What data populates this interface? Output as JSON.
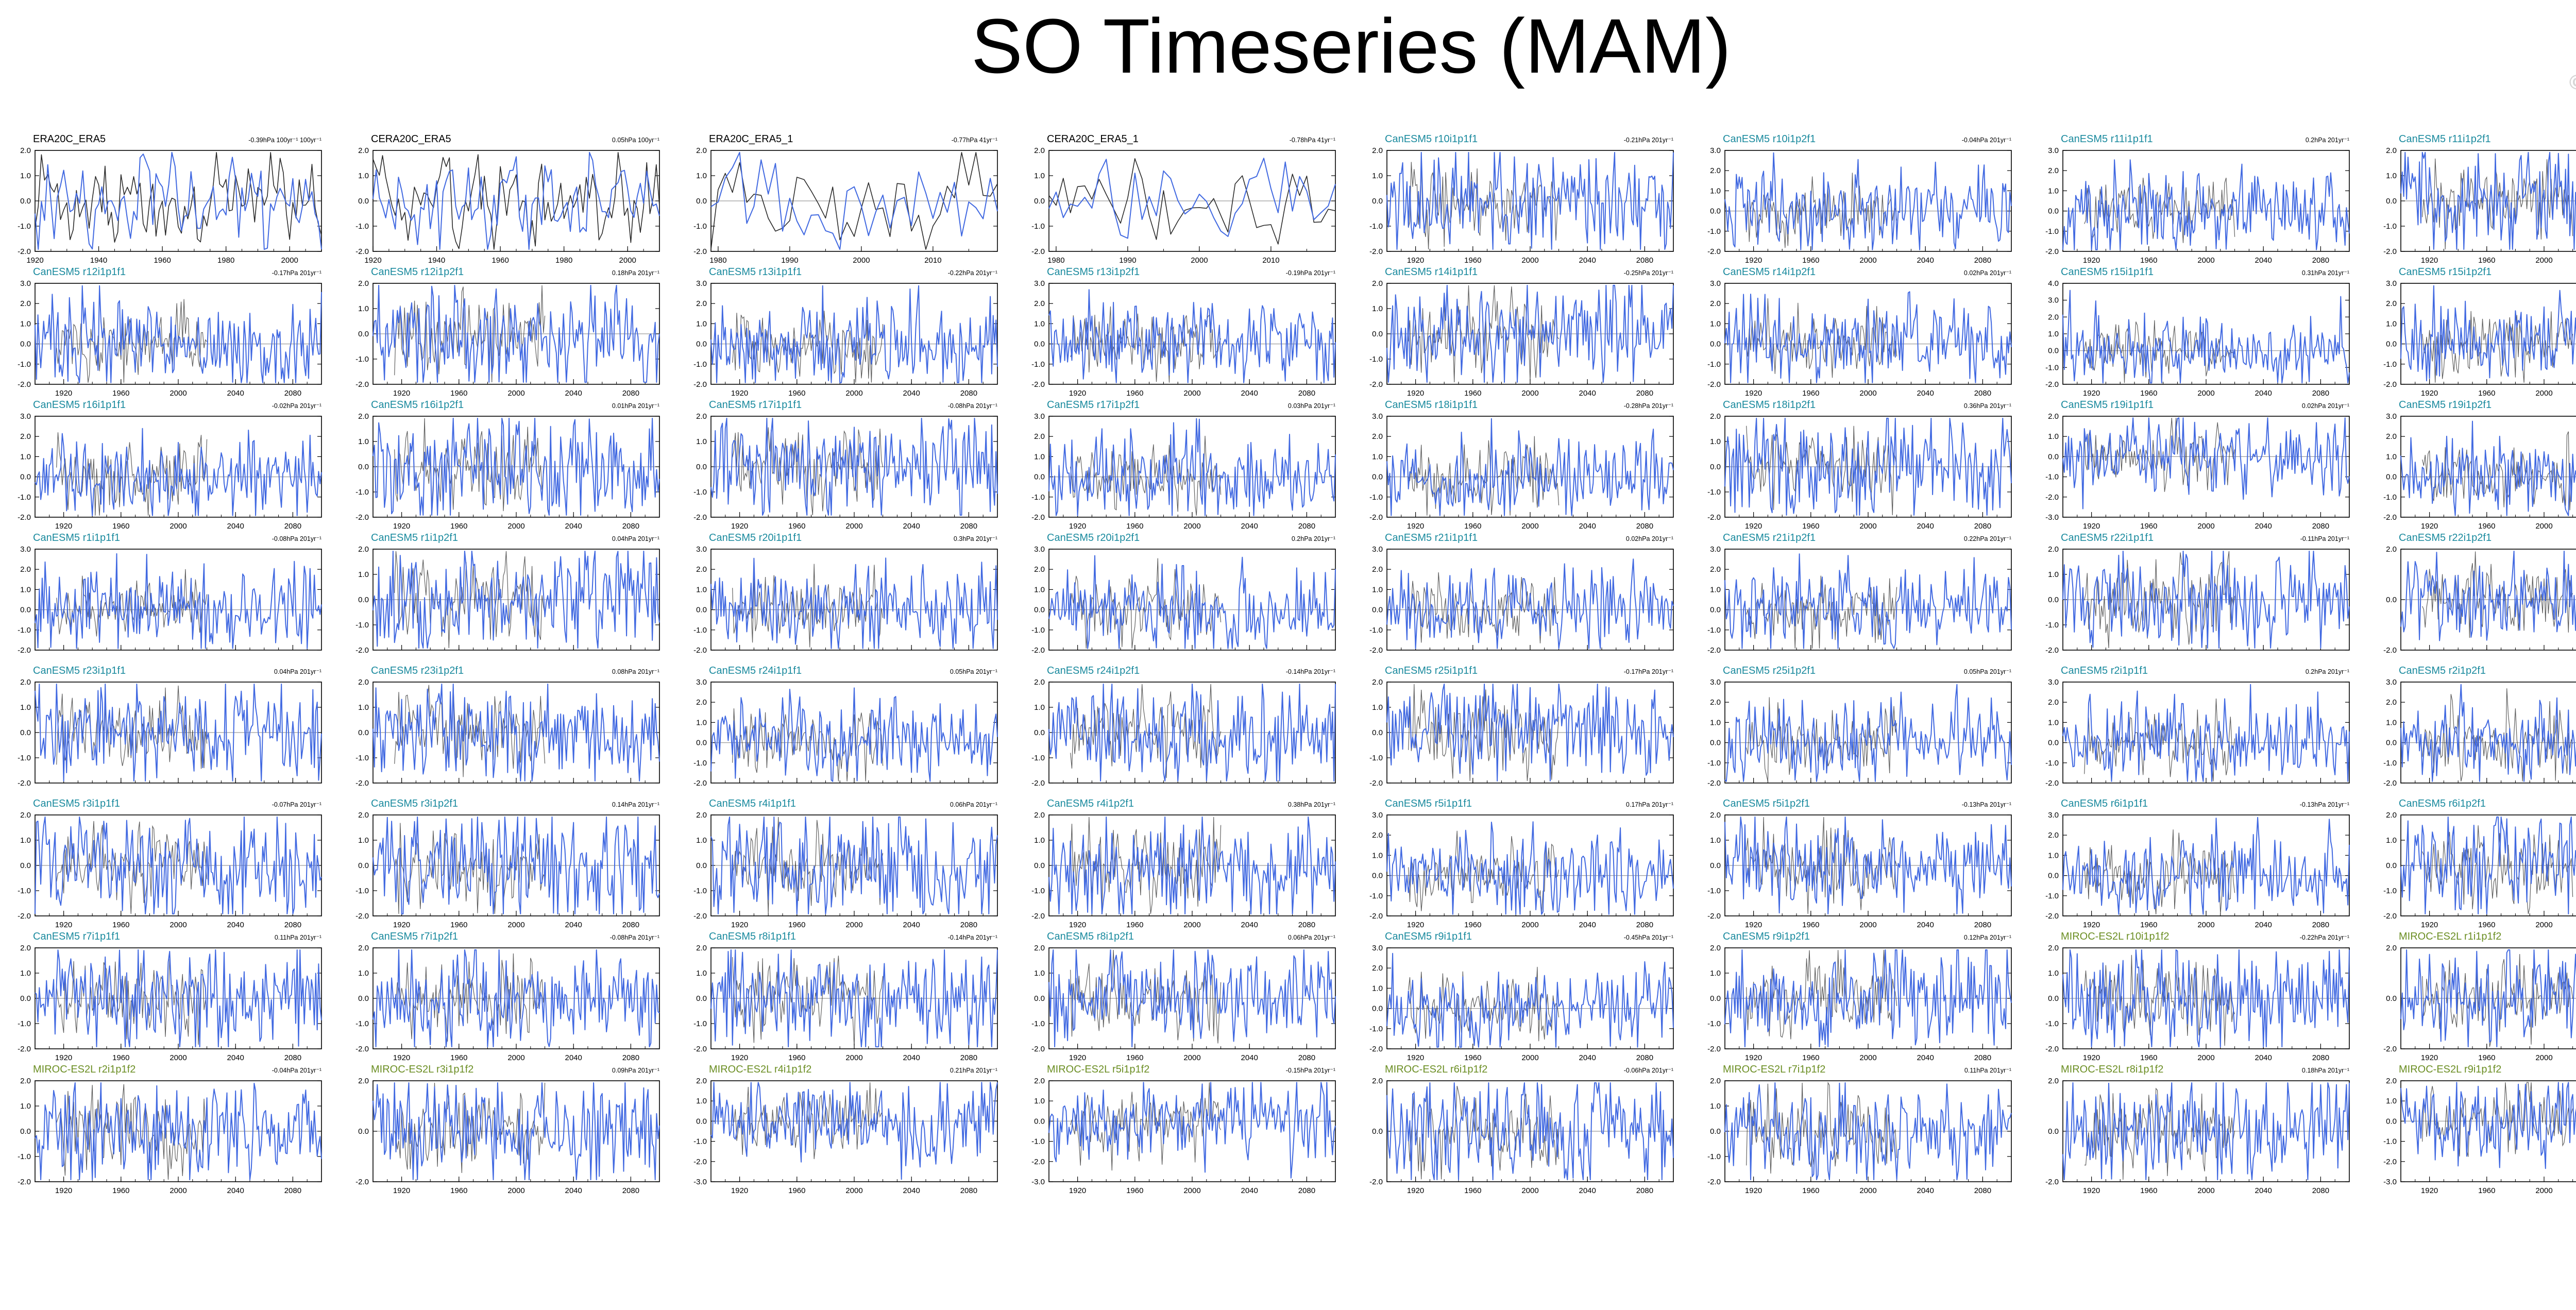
{
  "page": {
    "title": "SO Timeseries (MAM)",
    "watermark": "© CVDP-LE"
  },
  "colors": {
    "observed_line": "#2a2a2a",
    "ensemble_line": "#4169e1",
    "obs_label": "#000000",
    "canesm_label": "#1a8a9e",
    "miroc_label": "#6b8e23",
    "zero_line": "#9a9a9a"
  },
  "chart_data": [
    {
      "type": "line",
      "name": "ERA20C_ERA5",
      "trend": "-0.39hPa 100yr⁻¹ 100yr⁻¹",
      "kind": "obs",
      "x_range": [
        1920,
        2010
      ],
      "xticks": [
        "1920",
        "1940",
        "1960",
        "1980",
        "2000"
      ],
      "ylim": [
        -2.0,
        2.0
      ],
      "yticks": [
        "2.0",
        "1.0",
        "0.0",
        "-1.0",
        "-2.0"
      ]
    },
    {
      "type": "line",
      "name": "CERA20C_ERA5",
      "trend": "0.05hPa 100yr⁻¹",
      "kind": "obs",
      "x_range": [
        1920,
        2010
      ],
      "xticks": [
        "1920",
        "1940",
        "1960",
        "1980",
        "2000"
      ],
      "ylim": [
        -2.0,
        2.0
      ],
      "yticks": [
        "2.0",
        "1.0",
        "0.0",
        "-1.0",
        "-2.0"
      ]
    },
    {
      "type": "line",
      "name": "ERA20C_ERA5_1",
      "trend": "-0.77hPa 41yr⁻¹",
      "kind": "obs",
      "x_range": [
        1979,
        2019
      ],
      "xticks": [
        "1980",
        "1990",
        "2000",
        "2010"
      ],
      "ylim": [
        -2.0,
        2.0
      ],
      "yticks": [
        "2.0",
        "1.0",
        "0.0",
        "-1.0",
        "-2.0"
      ]
    },
    {
      "type": "line",
      "name": "CERA20C_ERA5_1",
      "trend": "-0.78hPa 41yr⁻¹",
      "kind": "obs",
      "x_range": [
        1979,
        2019
      ],
      "xticks": [
        "1980",
        "1990",
        "2000",
        "2010"
      ],
      "ylim": [
        -2.0,
        2.0
      ],
      "yticks": [
        "2.0",
        "1.0",
        "0.0",
        "-1.0",
        "-2.0"
      ]
    },
    {
      "type": "line",
      "name": "CanESM5 r10i1p1f1",
      "trend": "-0.21hPa 201yr⁻¹",
      "kind": "canesm",
      "ylim": [
        -2.0,
        2.0
      ],
      "yticks": [
        "2.0",
        "1.0",
        "0.0",
        "-1.0",
        "-2.0"
      ]
    },
    {
      "type": "line",
      "name": "CanESM5 r10i1p2f1",
      "trend": "-0.04hPa 201yr⁻¹",
      "kind": "canesm",
      "ylim": [
        -2.0,
        3.0
      ],
      "yticks": [
        "3.0",
        "2.0",
        "1.0",
        "0.0",
        "-1.0",
        "-2.0"
      ]
    },
    {
      "type": "line",
      "name": "CanESM5 r11i1p1f1",
      "trend": "0.2hPa 201yr⁻¹",
      "kind": "canesm",
      "ylim": [
        -2.0,
        3.0
      ],
      "yticks": [
        "3.0",
        "2.0",
        "1.0",
        "0.0",
        "-1.0",
        "-2.0"
      ]
    },
    {
      "type": "line",
      "name": "CanESM5 r11i1p2f1",
      "trend": "0hPa 201yr⁻¹",
      "kind": "canesm",
      "ylim": [
        -2.0,
        2.0
      ],
      "yticks": [
        "2.0",
        "1.0",
        "0.0",
        "-1.0",
        "-2.0"
      ]
    },
    {
      "type": "line",
      "name": "CanESM5 r12i1p1f1",
      "trend": "-0.17hPa 201yr⁻¹",
      "kind": "canesm",
      "ylim": [
        -2.0,
        3.0
      ],
      "yticks": [
        "3.0",
        "2.0",
        "1.0",
        "0.0",
        "-1.0",
        "-2.0"
      ]
    },
    {
      "type": "line",
      "name": "CanESM5 r12i1p2f1",
      "trend": "0.18hPa 201yr⁻¹",
      "kind": "canesm",
      "ylim": [
        -2.0,
        2.0
      ],
      "yticks": [
        "2.0",
        "1.0",
        "0.0",
        "-1.0",
        "-2.0"
      ]
    },
    {
      "type": "line",
      "name": "CanESM5 r13i1p1f1",
      "trend": "-0.22hPa 201yr⁻¹",
      "kind": "canesm",
      "ylim": [
        -2.0,
        3.0
      ],
      "yticks": [
        "3.0",
        "2.0",
        "1.0",
        "0.0",
        "-1.0",
        "-2.0"
      ]
    },
    {
      "type": "line",
      "name": "CanESM5 r13i1p2f1",
      "trend": "-0.19hPa 201yr⁻¹",
      "kind": "canesm",
      "ylim": [
        -2.0,
        3.0
      ],
      "yticks": [
        "3.0",
        "2.0",
        "1.0",
        "0.0",
        "-1.0",
        "-2.0"
      ]
    },
    {
      "type": "line",
      "name": "CanESM5 r14i1p1f1",
      "trend": "-0.25hPa 201yr⁻¹",
      "kind": "canesm",
      "ylim": [
        -2.0,
        2.0
      ],
      "yticks": [
        "2.0",
        "1.0",
        "0.0",
        "-1.0",
        "-2.0"
      ]
    },
    {
      "type": "line",
      "name": "CanESM5 r14i1p2f1",
      "trend": "0.02hPa 201yr⁻¹",
      "kind": "canesm",
      "ylim": [
        -2.0,
        3.0
      ],
      "yticks": [
        "3.0",
        "2.0",
        "1.0",
        "0.0",
        "-1.0",
        "-2.0"
      ]
    },
    {
      "type": "line",
      "name": "CanESM5 r15i1p1f1",
      "trend": "0.31hPa 201yr⁻¹",
      "kind": "canesm",
      "ylim": [
        -2.0,
        4.0
      ],
      "yticks": [
        "4.0",
        "3.0",
        "2.0",
        "1.0",
        "0.0",
        "-1.0",
        "-2.0"
      ]
    },
    {
      "type": "line",
      "name": "CanESM5 r15i1p2f1",
      "trend": "-0.14hPa 201yr⁻¹",
      "kind": "canesm",
      "ylim": [
        -2.0,
        3.0
      ],
      "yticks": [
        "3.0",
        "2.0",
        "1.0",
        "0.0",
        "-1.0",
        "-2.0"
      ]
    },
    {
      "type": "line",
      "name": "CanESM5 r16i1p1f1",
      "trend": "-0.02hPa 201yr⁻¹",
      "kind": "canesm",
      "ylim": [
        -2.0,
        3.0
      ],
      "yticks": [
        "3.0",
        "2.0",
        "1.0",
        "0.0",
        "-1.0",
        "-2.0"
      ]
    },
    {
      "type": "line",
      "name": "CanESM5 r16i1p2f1",
      "trend": "0.01hPa 201yr⁻¹",
      "kind": "canesm",
      "ylim": [
        -2.0,
        2.0
      ],
      "yticks": [
        "2.0",
        "1.0",
        "0.0",
        "-1.0",
        "-2.0"
      ]
    },
    {
      "type": "line",
      "name": "CanESM5 r17i1p1f1",
      "trend": "-0.08hPa 201yr⁻¹",
      "kind": "canesm",
      "ylim": [
        -2.0,
        2.0
      ],
      "yticks": [
        "2.0",
        "1.0",
        "0.0",
        "-1.0",
        "-2.0"
      ]
    },
    {
      "type": "line",
      "name": "CanESM5 r17i1p2f1",
      "trend": "0.03hPa 201yr⁻¹",
      "kind": "canesm",
      "ylim": [
        -2.0,
        3.0
      ],
      "yticks": [
        "3.0",
        "2.0",
        "1.0",
        "0.0",
        "-1.0",
        "-2.0"
      ]
    },
    {
      "type": "line",
      "name": "CanESM5 r18i1p1f1",
      "trend": "-0.28hPa 201yr⁻¹",
      "kind": "canesm",
      "ylim": [
        -2.0,
        3.0
      ],
      "yticks": [
        "3.0",
        "2.0",
        "1.0",
        "0.0",
        "-1.0",
        "-2.0"
      ]
    },
    {
      "type": "line",
      "name": "CanESM5 r18i1p2f1",
      "trend": "0.36hPa 201yr⁻¹",
      "kind": "canesm",
      "ylim": [
        -2.0,
        2.0
      ],
      "yticks": [
        "2.0",
        "1.0",
        "0.0",
        "-1.0",
        "-2.0"
      ]
    },
    {
      "type": "line",
      "name": "CanESM5 r19i1p1f1",
      "trend": "0.02hPa 201yr⁻¹",
      "kind": "canesm",
      "ylim": [
        -3.0,
        2.0
      ],
      "yticks": [
        "2.0",
        "1.0",
        "0.0",
        "-1.0",
        "-2.0",
        "-3.0"
      ]
    },
    {
      "type": "line",
      "name": "CanESM5 r19i1p2f1",
      "trend": "-0.24hPa 201yr⁻¹",
      "kind": "canesm",
      "ylim": [
        -2.0,
        3.0
      ],
      "yticks": [
        "3.0",
        "2.0",
        "1.0",
        "0.0",
        "-1.0",
        "-2.0"
      ]
    },
    {
      "type": "line",
      "name": "CanESM5 r1i1p1f1",
      "trend": "-0.08hPa 201yr⁻¹",
      "kind": "canesm",
      "ylim": [
        -2.0,
        3.0
      ],
      "yticks": [
        "3.0",
        "2.0",
        "1.0",
        "0.0",
        "-1.0",
        "-2.0"
      ]
    },
    {
      "type": "line",
      "name": "CanESM5 r1i1p2f1",
      "trend": "0.04hPa 201yr⁻¹",
      "kind": "canesm",
      "ylim": [
        -2.0,
        2.0
      ],
      "yticks": [
        "2.0",
        "1.0",
        "0.0",
        "-1.0",
        "-2.0"
      ]
    },
    {
      "type": "line",
      "name": "CanESM5 r20i1p1f1",
      "trend": "0.3hPa 201yr⁻¹",
      "kind": "canesm",
      "ylim": [
        -2.0,
        3.0
      ],
      "yticks": [
        "3.0",
        "2.0",
        "1.0",
        "0.0",
        "-1.0",
        "-2.0"
      ]
    },
    {
      "type": "line",
      "name": "CanESM5 r20i1p2f1",
      "trend": "0.2hPa 201yr⁻¹",
      "kind": "canesm",
      "ylim": [
        -2.0,
        3.0
      ],
      "yticks": [
        "3.0",
        "2.0",
        "1.0",
        "0.0",
        "-1.0",
        "-2.0"
      ]
    },
    {
      "type": "line",
      "name": "CanESM5 r21i1p1f1",
      "trend": "0.02hPa 201yr⁻¹",
      "kind": "canesm",
      "ylim": [
        -2.0,
        3.0
      ],
      "yticks": [
        "3.0",
        "2.0",
        "1.0",
        "0.0",
        "-1.0",
        "-2.0"
      ]
    },
    {
      "type": "line",
      "name": "CanESM5 r21i1p2f1",
      "trend": "0.22hPa 201yr⁻¹",
      "kind": "canesm",
      "ylim": [
        -2.0,
        3.0
      ],
      "yticks": [
        "3.0",
        "2.0",
        "1.0",
        "0.0",
        "-1.0",
        "-2.0"
      ]
    },
    {
      "type": "line",
      "name": "CanESM5 r22i1p1f1",
      "trend": "-0.11hPa 201yr⁻¹",
      "kind": "canesm",
      "ylim": [
        -2.0,
        2.0
      ],
      "yticks": [
        "2.0",
        "1.0",
        "0.0",
        "-1.0",
        "-2.0"
      ]
    },
    {
      "type": "line",
      "name": "CanESM5 r22i1p2f1",
      "trend": "0.24hPa 201yr⁻¹",
      "kind": "canesm",
      "ylim": [
        -2.0,
        2.0
      ],
      "yticks": [
        "2.0",
        "0.0",
        "-2.0"
      ]
    },
    {
      "type": "line",
      "name": "CanESM5 r23i1p1f1",
      "trend": "0.04hPa 201yr⁻¹",
      "kind": "canesm",
      "ylim": [
        -2.0,
        2.0
      ],
      "yticks": [
        "2.0",
        "1.0",
        "0.0",
        "-1.0",
        "-2.0"
      ]
    },
    {
      "type": "line",
      "name": "CanESM5 r23i1p2f1",
      "trend": "0.08hPa 201yr⁻¹",
      "kind": "canesm",
      "ylim": [
        -2.0,
        2.0
      ],
      "yticks": [
        "2.0",
        "1.0",
        "0.0",
        "-1.0",
        "-2.0"
      ]
    },
    {
      "type": "line",
      "name": "CanESM5 r24i1p1f1",
      "trend": "0.05hPa 201yr⁻¹",
      "kind": "canesm",
      "ylim": [
        -2.0,
        3.0
      ],
      "yticks": [
        "3.0",
        "2.0",
        "1.0",
        "0.0",
        "-1.0",
        "-2.0"
      ]
    },
    {
      "type": "line",
      "name": "CanESM5 r24i1p2f1",
      "trend": "-0.14hPa 201yr⁻¹",
      "kind": "canesm",
      "ylim": [
        -2.0,
        2.0
      ],
      "yticks": [
        "2.0",
        "1.0",
        "0.0",
        "-1.0",
        "-2.0"
      ]
    },
    {
      "type": "line",
      "name": "CanESM5 r25i1p1f1",
      "trend": "-0.17hPa 201yr⁻¹",
      "kind": "canesm",
      "ylim": [
        -2.0,
        2.0
      ],
      "yticks": [
        "2.0",
        "1.0",
        "0.0",
        "-1.0",
        "-2.0"
      ]
    },
    {
      "type": "line",
      "name": "CanESM5 r25i1p2f1",
      "trend": "0.05hPa 201yr⁻¹",
      "kind": "canesm",
      "ylim": [
        -2.0,
        3.0
      ],
      "yticks": [
        "3.0",
        "2.0",
        "1.0",
        "0.0",
        "-1.0",
        "-2.0"
      ]
    },
    {
      "type": "line",
      "name": "CanESM5 r2i1p1f1",
      "trend": "0.2hPa 201yr⁻¹",
      "kind": "canesm",
      "ylim": [
        -2.0,
        3.0
      ],
      "yticks": [
        "3.0",
        "2.0",
        "1.0",
        "0.0",
        "-1.0",
        "-2.0"
      ]
    },
    {
      "type": "line",
      "name": "CanESM5 r2i1p2f1",
      "trend": "0.36hPa 201yr⁻¹",
      "kind": "canesm",
      "ylim": [
        -2.0,
        3.0
      ],
      "yticks": [
        "3.0",
        "2.0",
        "1.0",
        "0.0",
        "-1.0",
        "-2.0"
      ]
    },
    {
      "type": "line",
      "name": "CanESM5 r3i1p1f1",
      "trend": "-0.07hPa 201yr⁻¹",
      "kind": "canesm",
      "ylim": [
        -2.0,
        2.0
      ],
      "yticks": [
        "2.0",
        "1.0",
        "0.0",
        "-1.0",
        "-2.0"
      ]
    },
    {
      "type": "line",
      "name": "CanESM5 r3i1p2f1",
      "trend": "0.14hPa 201yr⁻¹",
      "kind": "canesm",
      "ylim": [
        -2.0,
        2.0
      ],
      "yticks": [
        "2.0",
        "1.0",
        "0.0",
        "-1.0",
        "-2.0"
      ]
    },
    {
      "type": "line",
      "name": "CanESM5 r4i1p1f1",
      "trend": "0.06hPa 201yr⁻¹",
      "kind": "canesm",
      "ylim": [
        -2.0,
        2.0
      ],
      "yticks": [
        "2.0",
        "1.0",
        "0.0",
        "-1.0",
        "-2.0"
      ]
    },
    {
      "type": "line",
      "name": "CanESM5 r4i1p2f1",
      "trend": "0.38hPa 201yr⁻¹",
      "kind": "canesm",
      "ylim": [
        -2.0,
        2.0
      ],
      "yticks": [
        "2.0",
        "1.0",
        "0.0",
        "-1.0",
        "-2.0"
      ]
    },
    {
      "type": "line",
      "name": "CanESM5 r5i1p1f1",
      "trend": "0.17hPa 201yr⁻¹",
      "kind": "canesm",
      "ylim": [
        -2.0,
        3.0
      ],
      "yticks": [
        "3.0",
        "2.0",
        "1.0",
        "0.0",
        "-1.0",
        "-2.0"
      ]
    },
    {
      "type": "line",
      "name": "CanESM5 r5i1p2f1",
      "trend": "-0.13hPa 201yr⁻¹",
      "kind": "canesm",
      "ylim": [
        -2.0,
        2.0
      ],
      "yticks": [
        "2.0",
        "1.0",
        "0.0",
        "-1.0",
        "-2.0"
      ]
    },
    {
      "type": "line",
      "name": "CanESM5 r6i1p1f1",
      "trend": "-0.13hPa 201yr⁻¹",
      "kind": "canesm",
      "ylim": [
        -2.0,
        3.0
      ],
      "yticks": [
        "3.0",
        "2.0",
        "1.0",
        "0.0",
        "-1.0",
        "-2.0"
      ]
    },
    {
      "type": "line",
      "name": "CanESM5 r6i1p2f1",
      "trend": "0.06hPa 201yr⁻¹",
      "kind": "canesm",
      "ylim": [
        -2.0,
        2.0
      ],
      "yticks": [
        "2.0",
        "1.0",
        "0.0",
        "-1.0",
        "-2.0"
      ]
    },
    {
      "type": "line",
      "name": "CanESM5 r7i1p1f1",
      "trend": "0.11hPa 201yr⁻¹",
      "kind": "canesm",
      "ylim": [
        -2.0,
        2.0
      ],
      "yticks": [
        "2.0",
        "1.0",
        "0.0",
        "-1.0",
        "-2.0"
      ]
    },
    {
      "type": "line",
      "name": "CanESM5 r7i1p2f1",
      "trend": "-0.08hPa 201yr⁻¹",
      "kind": "canesm",
      "ylim": [
        -2.0,
        2.0
      ],
      "yticks": [
        "2.0",
        "1.0",
        "0.0",
        "-1.0",
        "-2.0"
      ]
    },
    {
      "type": "line",
      "name": "CanESM5 r8i1p1f1",
      "trend": "-0.14hPa 201yr⁻¹",
      "kind": "canesm",
      "ylim": [
        -2.0,
        2.0
      ],
      "yticks": [
        "2.0",
        "1.0",
        "0.0",
        "-1.0",
        "-2.0"
      ]
    },
    {
      "type": "line",
      "name": "CanESM5 r8i1p2f1",
      "trend": "0.06hPa 201yr⁻¹",
      "kind": "canesm",
      "ylim": [
        -2.0,
        2.0
      ],
      "yticks": [
        "2.0",
        "1.0",
        "0.0",
        "-1.0",
        "-2.0"
      ]
    },
    {
      "type": "line",
      "name": "CanESM5 r9i1p1f1",
      "trend": "-0.45hPa 201yr⁻¹",
      "kind": "canesm",
      "ylim": [
        -2.0,
        3.0
      ],
      "yticks": [
        "3.0",
        "2.0",
        "1.0",
        "0.0",
        "-1.0",
        "-2.0"
      ]
    },
    {
      "type": "line",
      "name": "CanESM5 r9i1p2f1",
      "trend": "0.12hPa 201yr⁻¹",
      "kind": "canesm",
      "ylim": [
        -2.0,
        2.0
      ],
      "yticks": [
        "2.0",
        "1.0",
        "0.0",
        "-1.0",
        "-2.0"
      ]
    },
    {
      "type": "line",
      "name": "MIROC-ES2L r10i1p1f2",
      "trend": "-0.22hPa 201yr⁻¹",
      "kind": "miroc",
      "ylim": [
        -2.0,
        2.0
      ],
      "yticks": [
        "2.0",
        "1.0",
        "0.0",
        "-1.0",
        "-2.0"
      ]
    },
    {
      "type": "line",
      "name": "MIROC-ES2L r1i1p1f2",
      "trend": "-0.17hPa 201yr⁻¹",
      "kind": "miroc",
      "ylim": [
        -2.0,
        2.0
      ],
      "yticks": [
        "2.0",
        "0.0",
        "-2.0"
      ]
    },
    {
      "type": "line",
      "name": "MIROC-ES2L r2i1p1f2",
      "trend": "-0.04hPa 201yr⁻¹",
      "kind": "miroc",
      "ylim": [
        -2.0,
        2.0
      ],
      "yticks": [
        "2.0",
        "1.0",
        "0.0",
        "-1.0",
        "-2.0"
      ]
    },
    {
      "type": "line",
      "name": "MIROC-ES2L r3i1p1f2",
      "trend": "0.09hPa 201yr⁻¹",
      "kind": "miroc",
      "ylim": [
        -2.0,
        2.0
      ],
      "yticks": [
        "2.0",
        "0.0",
        "-2.0"
      ]
    },
    {
      "type": "line",
      "name": "MIROC-ES2L r4i1p1f2",
      "trend": "0.21hPa 201yr⁻¹",
      "kind": "miroc",
      "ylim": [
        -3.0,
        2.0
      ],
      "yticks": [
        "2.0",
        "1.0",
        "0.0",
        "-1.0",
        "-2.0",
        "-3.0"
      ]
    },
    {
      "type": "line",
      "name": "MIROC-ES2L r5i1p1f2",
      "trend": "-0.15hPa 201yr⁻¹",
      "kind": "miroc",
      "ylim": [
        -3.0,
        2.0
      ],
      "yticks": [
        "2.0",
        "1.0",
        "0.0",
        "-1.0",
        "-2.0",
        "-3.0"
      ]
    },
    {
      "type": "line",
      "name": "MIROC-ES2L r6i1p1f2",
      "trend": "-0.06hPa 201yr⁻¹",
      "kind": "miroc",
      "ylim": [
        -2.0,
        2.0
      ],
      "yticks": [
        "2.0",
        "0.0",
        "-2.0"
      ]
    },
    {
      "type": "line",
      "name": "MIROC-ES2L r7i1p1f2",
      "trend": "0.11hPa 201yr⁻¹",
      "kind": "miroc",
      "ylim": [
        -2.0,
        2.0
      ],
      "yticks": [
        "2.0",
        "1.0",
        "0.0",
        "-1.0",
        "-2.0"
      ]
    },
    {
      "type": "line",
      "name": "MIROC-ES2L r8i1p1f2",
      "trend": "0.18hPa 201yr⁻¹",
      "kind": "miroc",
      "ylim": [
        -2.0,
        2.0
      ],
      "yticks": [
        "2.0",
        "0.0",
        "-2.0"
      ]
    },
    {
      "type": "line",
      "name": "MIROC-ES2L r9i1p1f2",
      "trend": "-0.13hPa 201yr⁻¹",
      "kind": "miroc",
      "ylim": [
        -3.0,
        2.0
      ],
      "yticks": [
        "2.0",
        "1.0",
        "0.0",
        "-1.0",
        "-2.0",
        "-3.0"
      ]
    }
  ],
  "model_axis": {
    "x_range": [
      1900,
      2100
    ],
    "xticks": [
      "1920",
      "1960",
      "2000",
      "2040",
      "2080"
    ]
  }
}
